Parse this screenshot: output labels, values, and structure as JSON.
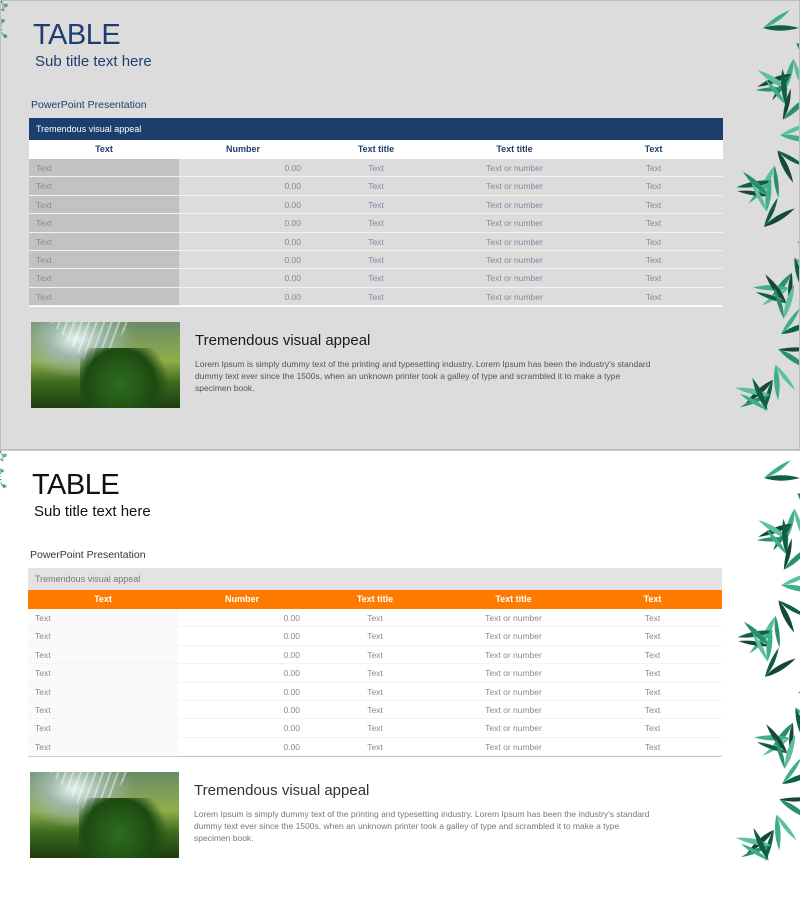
{
  "colors": {
    "navy": "#1c3f6e",
    "orange": "#ff7b00",
    "leaf": "#1f7a5a"
  },
  "slides": [
    {
      "title": "TABLE",
      "subtitle": "Sub title text here",
      "section_label": "PowerPoint Presentation",
      "table": {
        "caption": "Tremendous visual appeal",
        "headers": [
          "Text",
          "Number",
          "Text title",
          "Text title",
          "Text"
        ],
        "rows": [
          [
            "Text",
            "0.00",
            "Text",
            "Text or number",
            "Text"
          ],
          [
            "Text",
            "0.00",
            "Text",
            "Text or number",
            "Text"
          ],
          [
            "Text",
            "0.00",
            "Text",
            "Text or number",
            "Text"
          ],
          [
            "Text",
            "0.00",
            "Text",
            "Text or number",
            "Text"
          ],
          [
            "Text",
            "0.00",
            "Text",
            "Text or number",
            "Text"
          ],
          [
            "Text",
            "0.00",
            "Text",
            "Text or number",
            "Text"
          ],
          [
            "Text",
            "0.00",
            "Text",
            "Text or number",
            "Text"
          ],
          [
            "Text",
            "0.00",
            "Text",
            "Text or number",
            "Text"
          ]
        ]
      },
      "feature": {
        "heading": "Tremendous visual appeal",
        "body": "Lorem Ipsum is simply dummy text of the printing and typesetting industry. Lorem Ipsum has been the industry's standard dummy text ever since the 1500s, when an unknown printer took a galley of type and scrambled it to make a type specimen book."
      }
    },
    {
      "title": "TABLE",
      "subtitle": "Sub title text here",
      "section_label": "PowerPoint Presentation",
      "table": {
        "caption": "Tremendous visual appeal",
        "headers": [
          "Text",
          "Number",
          "Text title",
          "Text title",
          "Text"
        ],
        "rows": [
          [
            "Text",
            "0.00",
            "Text",
            "Text or number",
            "Text"
          ],
          [
            "Text",
            "0.00",
            "Text",
            "Text or number",
            "Text"
          ],
          [
            "Text",
            "0.00",
            "Text",
            "Text or number",
            "Text"
          ],
          [
            "Text",
            "0.00",
            "Text",
            "Text or number",
            "Text"
          ],
          [
            "Text",
            "0.00",
            "Text",
            "Text or number",
            "Text"
          ],
          [
            "Text",
            "0.00",
            "Text",
            "Text or number",
            "Text"
          ],
          [
            "Text",
            "0.00",
            "Text",
            "Text or number",
            "Text"
          ],
          [
            "Text",
            "0.00",
            "Text",
            "Text or number",
            "Text"
          ]
        ]
      },
      "feature": {
        "heading": "Tremendous visual appeal",
        "body": "Lorem Ipsum is simply dummy text of the printing and typesetting industry. Lorem Ipsum has been the industry's standard dummy text ever since the 1500s, when an unknown printer took a galley of type and scrambled it to make a type specimen book."
      }
    }
  ]
}
